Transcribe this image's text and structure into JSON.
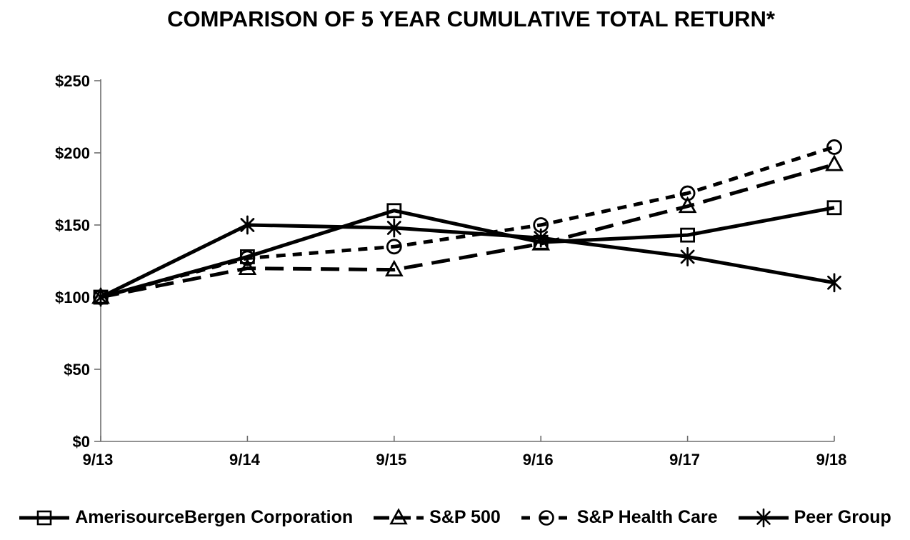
{
  "title": "COMPARISON OF 5 YEAR CUMULATIVE TOTAL RETURN*",
  "colors": {
    "series": "#000000",
    "axis": "#6e6e6e",
    "text": "#000000",
    "background": "#ffffff"
  },
  "chart_data": {
    "type": "line",
    "title": "COMPARISON OF 5 YEAR CUMULATIVE TOTAL RETURN*",
    "categories": [
      "9/13",
      "9/14",
      "9/15",
      "9/16",
      "9/17",
      "9/18"
    ],
    "y_tick_labels": [
      "$0",
      "$50",
      "$100",
      "$150",
      "$200",
      "$250"
    ],
    "ylim": [
      0,
      250
    ],
    "y_tick_step": 50,
    "grid": false,
    "legend_position": "bottom",
    "series": [
      {
        "name": "AmerisourceBergen Corporation",
        "marker": "square",
        "line_style": "solid",
        "values": [
          100,
          128,
          160,
          138,
          143,
          162
        ]
      },
      {
        "name": "S&P 500",
        "marker": "triangle",
        "line_style": "long-dash",
        "values": [
          100,
          120,
          119,
          137,
          163,
          192
        ]
      },
      {
        "name": "S&P Health Care",
        "marker": "circle",
        "line_style": "short-dash",
        "values": [
          100,
          127,
          135,
          150,
          172,
          204
        ]
      },
      {
        "name": "Peer Group",
        "marker": "asterisk",
        "line_style": "solid",
        "values": [
          100,
          150,
          148,
          141,
          128,
          110
        ]
      }
    ]
  }
}
